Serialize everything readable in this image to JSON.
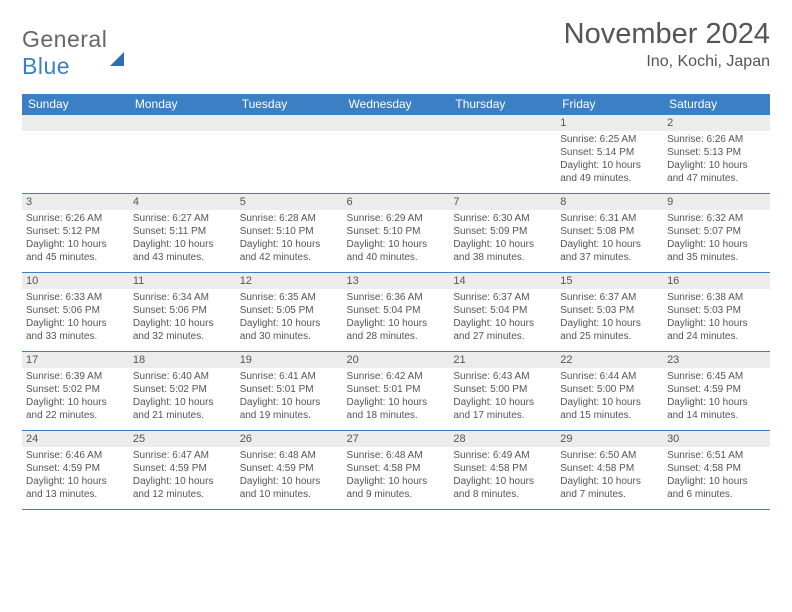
{
  "header": {
    "logo_general": "General",
    "logo_blue": "Blue",
    "month_title": "November 2024",
    "location": "Ino, Kochi, Japan"
  },
  "colors": {
    "header_bar": "#3b7fc4",
    "daynum_bg": "#ececec",
    "text": "#555555",
    "border": "#3b7fc4"
  },
  "day_headers": [
    "Sunday",
    "Monday",
    "Tuesday",
    "Wednesday",
    "Thursday",
    "Friday",
    "Saturday"
  ],
  "weeks": [
    [
      {
        "n": "",
        "sr": "",
        "ss": "",
        "dl": ""
      },
      {
        "n": "",
        "sr": "",
        "ss": "",
        "dl": ""
      },
      {
        "n": "",
        "sr": "",
        "ss": "",
        "dl": ""
      },
      {
        "n": "",
        "sr": "",
        "ss": "",
        "dl": ""
      },
      {
        "n": "",
        "sr": "",
        "ss": "",
        "dl": ""
      },
      {
        "n": "1",
        "sr": "Sunrise: 6:25 AM",
        "ss": "Sunset: 5:14 PM",
        "dl": "Daylight: 10 hours and 49 minutes."
      },
      {
        "n": "2",
        "sr": "Sunrise: 6:26 AM",
        "ss": "Sunset: 5:13 PM",
        "dl": "Daylight: 10 hours and 47 minutes."
      }
    ],
    [
      {
        "n": "3",
        "sr": "Sunrise: 6:26 AM",
        "ss": "Sunset: 5:12 PM",
        "dl": "Daylight: 10 hours and 45 minutes."
      },
      {
        "n": "4",
        "sr": "Sunrise: 6:27 AM",
        "ss": "Sunset: 5:11 PM",
        "dl": "Daylight: 10 hours and 43 minutes."
      },
      {
        "n": "5",
        "sr": "Sunrise: 6:28 AM",
        "ss": "Sunset: 5:10 PM",
        "dl": "Daylight: 10 hours and 42 minutes."
      },
      {
        "n": "6",
        "sr": "Sunrise: 6:29 AM",
        "ss": "Sunset: 5:10 PM",
        "dl": "Daylight: 10 hours and 40 minutes."
      },
      {
        "n": "7",
        "sr": "Sunrise: 6:30 AM",
        "ss": "Sunset: 5:09 PM",
        "dl": "Daylight: 10 hours and 38 minutes."
      },
      {
        "n": "8",
        "sr": "Sunrise: 6:31 AM",
        "ss": "Sunset: 5:08 PM",
        "dl": "Daylight: 10 hours and 37 minutes."
      },
      {
        "n": "9",
        "sr": "Sunrise: 6:32 AM",
        "ss": "Sunset: 5:07 PM",
        "dl": "Daylight: 10 hours and 35 minutes."
      }
    ],
    [
      {
        "n": "10",
        "sr": "Sunrise: 6:33 AM",
        "ss": "Sunset: 5:06 PM",
        "dl": "Daylight: 10 hours and 33 minutes."
      },
      {
        "n": "11",
        "sr": "Sunrise: 6:34 AM",
        "ss": "Sunset: 5:06 PM",
        "dl": "Daylight: 10 hours and 32 minutes."
      },
      {
        "n": "12",
        "sr": "Sunrise: 6:35 AM",
        "ss": "Sunset: 5:05 PM",
        "dl": "Daylight: 10 hours and 30 minutes."
      },
      {
        "n": "13",
        "sr": "Sunrise: 6:36 AM",
        "ss": "Sunset: 5:04 PM",
        "dl": "Daylight: 10 hours and 28 minutes."
      },
      {
        "n": "14",
        "sr": "Sunrise: 6:37 AM",
        "ss": "Sunset: 5:04 PM",
        "dl": "Daylight: 10 hours and 27 minutes."
      },
      {
        "n": "15",
        "sr": "Sunrise: 6:37 AM",
        "ss": "Sunset: 5:03 PM",
        "dl": "Daylight: 10 hours and 25 minutes."
      },
      {
        "n": "16",
        "sr": "Sunrise: 6:38 AM",
        "ss": "Sunset: 5:03 PM",
        "dl": "Daylight: 10 hours and 24 minutes."
      }
    ],
    [
      {
        "n": "17",
        "sr": "Sunrise: 6:39 AM",
        "ss": "Sunset: 5:02 PM",
        "dl": "Daylight: 10 hours and 22 minutes."
      },
      {
        "n": "18",
        "sr": "Sunrise: 6:40 AM",
        "ss": "Sunset: 5:02 PM",
        "dl": "Daylight: 10 hours and 21 minutes."
      },
      {
        "n": "19",
        "sr": "Sunrise: 6:41 AM",
        "ss": "Sunset: 5:01 PM",
        "dl": "Daylight: 10 hours and 19 minutes."
      },
      {
        "n": "20",
        "sr": "Sunrise: 6:42 AM",
        "ss": "Sunset: 5:01 PM",
        "dl": "Daylight: 10 hours and 18 minutes."
      },
      {
        "n": "21",
        "sr": "Sunrise: 6:43 AM",
        "ss": "Sunset: 5:00 PM",
        "dl": "Daylight: 10 hours and 17 minutes."
      },
      {
        "n": "22",
        "sr": "Sunrise: 6:44 AM",
        "ss": "Sunset: 5:00 PM",
        "dl": "Daylight: 10 hours and 15 minutes."
      },
      {
        "n": "23",
        "sr": "Sunrise: 6:45 AM",
        "ss": "Sunset: 4:59 PM",
        "dl": "Daylight: 10 hours and 14 minutes."
      }
    ],
    [
      {
        "n": "24",
        "sr": "Sunrise: 6:46 AM",
        "ss": "Sunset: 4:59 PM",
        "dl": "Daylight: 10 hours and 13 minutes."
      },
      {
        "n": "25",
        "sr": "Sunrise: 6:47 AM",
        "ss": "Sunset: 4:59 PM",
        "dl": "Daylight: 10 hours and 12 minutes."
      },
      {
        "n": "26",
        "sr": "Sunrise: 6:48 AM",
        "ss": "Sunset: 4:59 PM",
        "dl": "Daylight: 10 hours and 10 minutes."
      },
      {
        "n": "27",
        "sr": "Sunrise: 6:48 AM",
        "ss": "Sunset: 4:58 PM",
        "dl": "Daylight: 10 hours and 9 minutes."
      },
      {
        "n": "28",
        "sr": "Sunrise: 6:49 AM",
        "ss": "Sunset: 4:58 PM",
        "dl": "Daylight: 10 hours and 8 minutes."
      },
      {
        "n": "29",
        "sr": "Sunrise: 6:50 AM",
        "ss": "Sunset: 4:58 PM",
        "dl": "Daylight: 10 hours and 7 minutes."
      },
      {
        "n": "30",
        "sr": "Sunrise: 6:51 AM",
        "ss": "Sunset: 4:58 PM",
        "dl": "Daylight: 10 hours and 6 minutes."
      }
    ]
  ]
}
